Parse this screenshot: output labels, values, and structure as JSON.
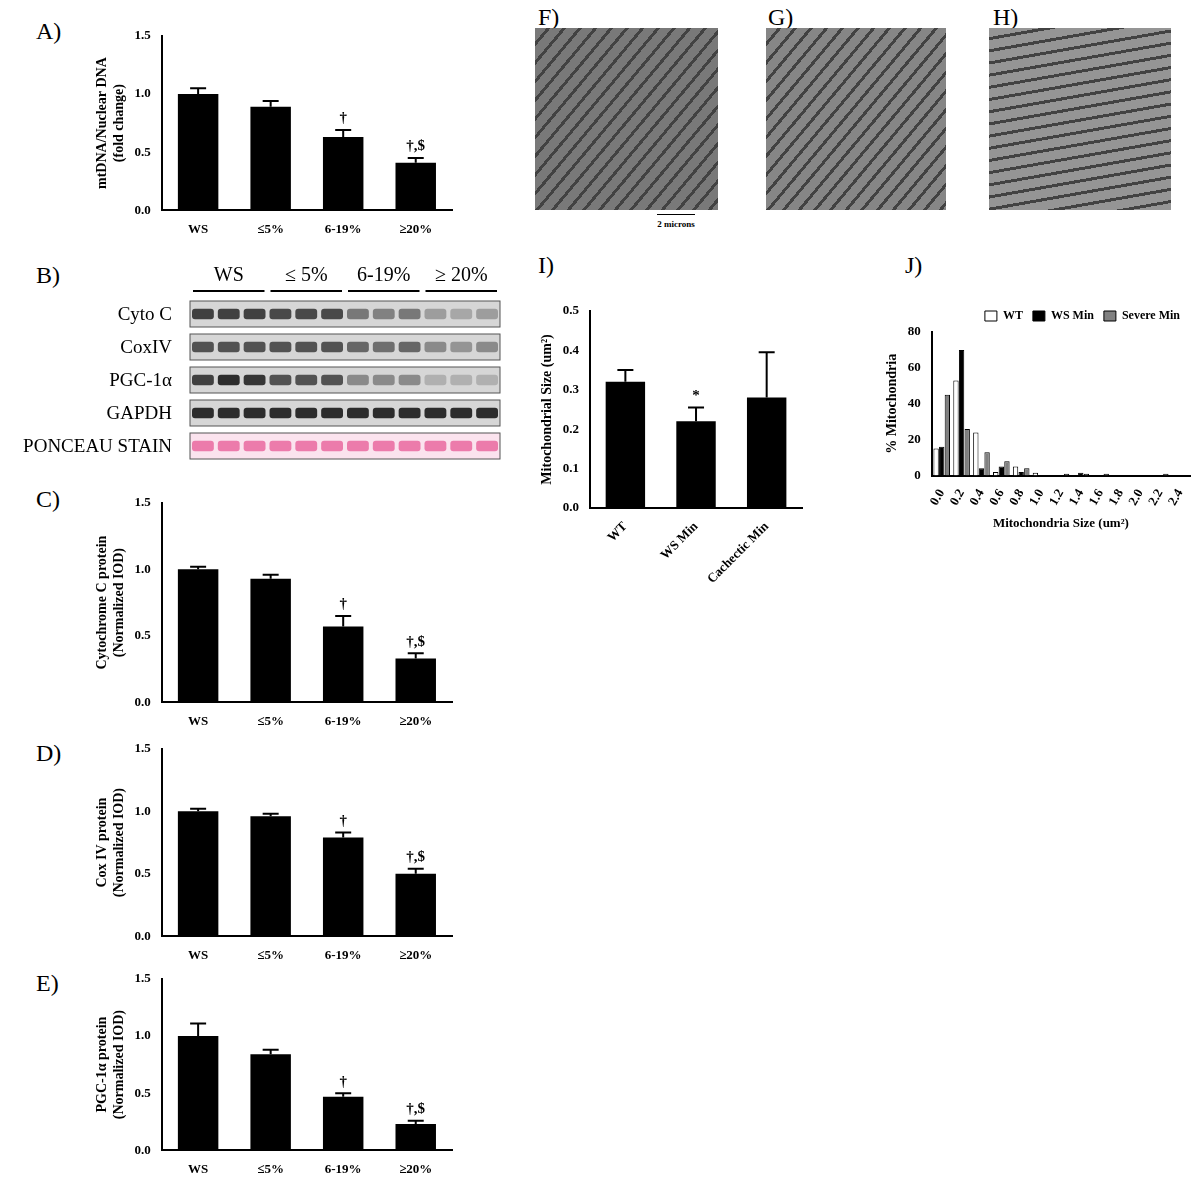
{
  "chart_data": [
    {
      "title": "A)",
      "type": "bar",
      "categories": [
        "WS",
        "≤5%",
        "6-19%",
        "≥20%"
      ],
      "values": [
        1.0,
        0.89,
        0.63,
        0.41
      ],
      "errors": [
        0.05,
        0.05,
        0.06,
        0.04
      ],
      "annotations": [
        null,
        null,
        "†",
        "†,$"
      ],
      "color": "#000000",
      "y_label": [
        "mtDNA/Nuclear DNA",
        "(fold change)"
      ],
      "ylim": [
        0,
        1.5
      ],
      "yticks": [
        {
          "value": 0,
          "label": "0.0"
        },
        {
          "value": 0.5,
          "label": "0.5"
        },
        {
          "value": 1,
          "label": "1.0"
        },
        {
          "value": 1.5,
          "label": "1.5"
        }
      ],
      "grid": false
    },
    {
      "title": "C)",
      "type": "bar",
      "categories": [
        "WS",
        "≤5%",
        "6-19%",
        "≥20%"
      ],
      "values": [
        1.0,
        0.93,
        0.57,
        0.33
      ],
      "errors": [
        0.02,
        0.03,
        0.08,
        0.04
      ],
      "annotations": [
        null,
        null,
        "†",
        "†,$"
      ],
      "color": "#000000",
      "y_label": [
        "Cytochrome C protein",
        "(Normalized IOD)"
      ],
      "ylim": [
        0,
        1.5
      ],
      "yticks": [
        {
          "value": 0,
          "label": "0.0"
        },
        {
          "value": 0.5,
          "label": "0.5"
        },
        {
          "value": 1,
          "label": "1.0"
        },
        {
          "value": 1.5,
          "label": "1.5"
        }
      ],
      "grid": false
    },
    {
      "title": "D)",
      "type": "bar",
      "categories": [
        "WS",
        "≤5%",
        "6-19%",
        "≥20%"
      ],
      "values": [
        1.0,
        0.96,
        0.79,
        0.5
      ],
      "errors": [
        0.02,
        0.02,
        0.04,
        0.04
      ],
      "annotations": [
        null,
        null,
        "†",
        "†,$"
      ],
      "color": "#000000",
      "y_label": [
        "Cox IV protein",
        "(Normalized IOD)"
      ],
      "ylim": [
        0,
        1.5
      ],
      "yticks": [
        {
          "value": 0,
          "label": "0.0"
        },
        {
          "value": 0.5,
          "label": "0.5"
        },
        {
          "value": 1,
          "label": "1.0"
        },
        {
          "value": 1.5,
          "label": "1.5"
        }
      ],
      "grid": false
    },
    {
      "title": "E)",
      "type": "bar",
      "categories": [
        "WS",
        "≤5%",
        "6-19%",
        "≥20%"
      ],
      "values": [
        1.0,
        0.84,
        0.47,
        0.23
      ],
      "errors": [
        0.11,
        0.04,
        0.03,
        0.03
      ],
      "annotations": [
        null,
        null,
        "†",
        "†,$"
      ],
      "color": "#000000",
      "y_label": [
        "PGC-1α protein",
        "(Normalized IOD)"
      ],
      "ylim": [
        0,
        1.5
      ],
      "yticks": [
        {
          "value": 0,
          "label": "0.0"
        },
        {
          "value": 0.5,
          "label": "0.5"
        },
        {
          "value": 1,
          "label": "1.0"
        },
        {
          "value": 1.5,
          "label": "1.5"
        }
      ],
      "grid": false
    },
    {
      "title": "I)",
      "type": "bar",
      "categories": [
        "WT",
        "WS Min",
        "Cachectic Min"
      ],
      "values": [
        0.32,
        0.22,
        0.28
      ],
      "errors": [
        0.03,
        0.035,
        0.115
      ],
      "annotations": [
        null,
        "*",
        null
      ],
      "color": "#000000",
      "y_label": "Mitochondrial Size (um²)",
      "ylim": [
        0,
        0.5
      ],
      "yticks": [
        {
          "value": 0,
          "label": "0.0"
        },
        {
          "value": 0.1,
          "label": "0.1"
        },
        {
          "value": 0.2,
          "label": "0.2"
        },
        {
          "value": 0.3,
          "label": "0.3"
        },
        {
          "value": 0.4,
          "label": "0.4"
        },
        {
          "value": 0.5,
          "label": "0.5"
        }
      ],
      "grid": false
    },
    {
      "title": "J)",
      "type": "bar",
      "categories": [
        "0.0",
        "0.2",
        "0.4",
        "0.6",
        "0.8",
        "1.0",
        "1.2",
        "1.4",
        "1.6",
        "1.8",
        "2.0",
        "2.2",
        "2.4"
      ],
      "series": [
        {
          "name": "WT",
          "color": "#ffffff",
          "values": [
            15,
            53,
            24,
            2,
            5,
            1.5,
            0,
            0,
            0,
            0,
            0,
            0,
            0
          ]
        },
        {
          "name": "WS Min",
          "color": "#000000",
          "values": [
            16,
            70,
            4,
            5,
            2,
            0,
            0,
            1.5,
            0,
            0,
            0,
            0,
            0
          ]
        },
        {
          "name": "Severe Min",
          "color": "#808080",
          "values": [
            45,
            26,
            13,
            8,
            4,
            0,
            1,
            1,
            1,
            0,
            0,
            1,
            0
          ]
        }
      ],
      "x_label": "Mitochondria Size (um²)",
      "y_label": "% Mitochondria",
      "ylim": [
        0,
        80
      ],
      "yticks": [
        0,
        20,
        40,
        60,
        80
      ],
      "legend": "top right",
      "grid": false
    }
  ],
  "blot": {
    "title": "B)",
    "groups": [
      "WS",
      "≤ 5%",
      "6-19%",
      "≥ 20%"
    ],
    "rows": [
      {
        "name": "Cyto C",
        "intensity": [
          0.8,
          0.8,
          0.8,
          0.75,
          0.75,
          0.75,
          0.5,
          0.45,
          0.5,
          0.3,
          0.25,
          0.3
        ]
      },
      {
        "name": "CoxIV",
        "intensity": [
          0.7,
          0.7,
          0.7,
          0.7,
          0.7,
          0.7,
          0.6,
          0.55,
          0.6,
          0.4,
          0.35,
          0.4
        ]
      },
      {
        "name": "PGC-1α",
        "intensity": [
          0.8,
          0.9,
          0.85,
          0.7,
          0.7,
          0.7,
          0.4,
          0.4,
          0.4,
          0.2,
          0.2,
          0.2
        ]
      },
      {
        "name": "GAPDH",
        "intensity": [
          0.9,
          0.9,
          0.9,
          0.9,
          0.9,
          0.9,
          0.9,
          0.9,
          0.9,
          0.9,
          0.9,
          0.9
        ]
      },
      {
        "name": "PONCEAU STAIN",
        "color": "#e8609a",
        "intensity": [
          0.8,
          0.8,
          0.8,
          0.8,
          0.8,
          0.8,
          0.8,
          0.8,
          0.8,
          0.8,
          0.8,
          0.8
        ]
      }
    ]
  },
  "micrographs": {
    "panels": [
      "F)",
      "G)",
      "H)"
    ],
    "scale_bar": "2 microns"
  }
}
